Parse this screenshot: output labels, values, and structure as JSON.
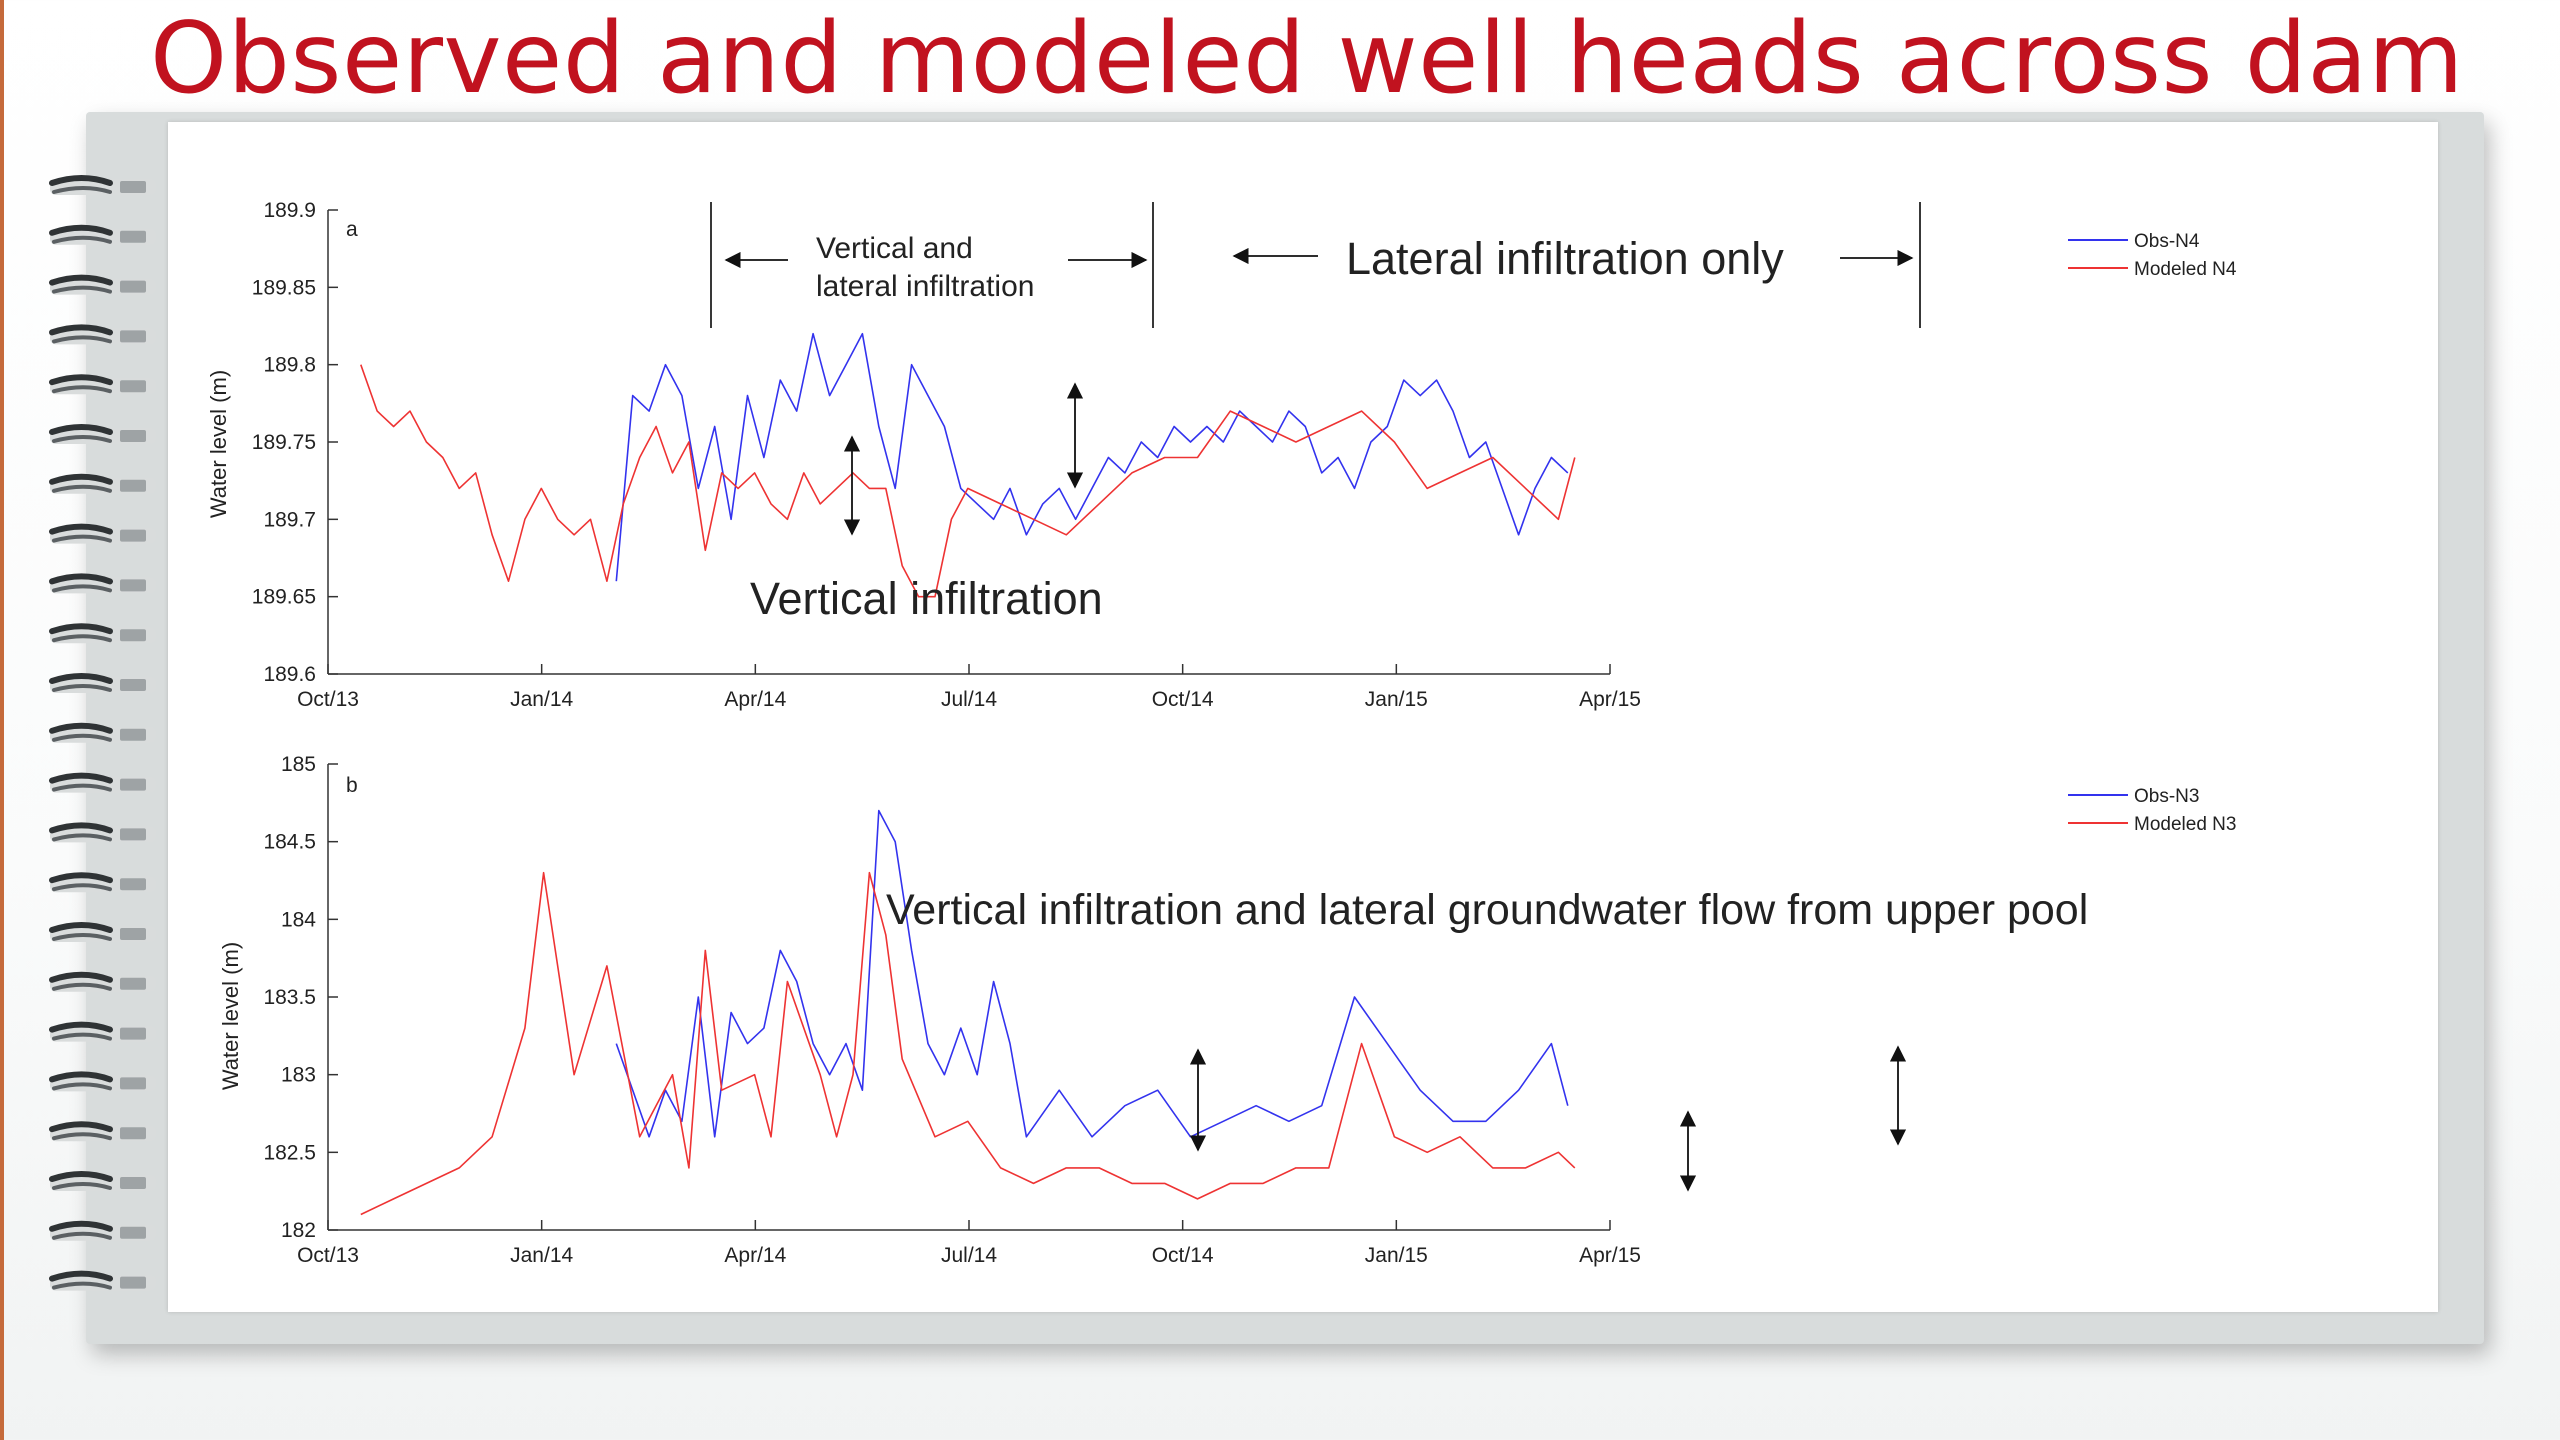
{
  "slide": {
    "title": "Observed and modeled well heads across dam"
  },
  "colors": {
    "title": "#c1121f",
    "observed_series": "#3333ee",
    "modeled_series": "#ee3333",
    "left_edge": "#c56a3b"
  },
  "icons": [
    "spiral-binding-icon",
    "double-arrow-icon"
  ],
  "chart_data": [
    {
      "type": "line",
      "panel_label": "a",
      "ylabel": "Water level (m)",
      "xlabel": "",
      "x_ticks": [
        "Oct/13",
        "Jan/14",
        "Apr/14",
        "Jul/14",
        "Oct/14",
        "Jan/15",
        "Apr/15"
      ],
      "y_ticks": [
        "189.6",
        "189.65",
        "189.7",
        "189.75",
        "189.8",
        "189.85",
        "189.9"
      ],
      "xlim": [
        "2013-10-01",
        "2015-04-01"
      ],
      "ylim": [
        189.6,
        189.9
      ],
      "grid": false,
      "legend": "top-right",
      "series": [
        {
          "name": "Obs-N4",
          "color": "#3333ee",
          "x": [
            "2014-02-01",
            "2014-02-08",
            "2014-02-15",
            "2014-02-22",
            "2014-03-01",
            "2014-03-08",
            "2014-03-15",
            "2014-03-22",
            "2014-03-29",
            "2014-04-05",
            "2014-04-12",
            "2014-04-19",
            "2014-04-26",
            "2014-05-03",
            "2014-05-10",
            "2014-05-17",
            "2014-05-24",
            "2014-05-31",
            "2014-06-07",
            "2014-06-14",
            "2014-06-21",
            "2014-06-28",
            "2014-07-05",
            "2014-07-12",
            "2014-07-19",
            "2014-07-26",
            "2014-08-02",
            "2014-08-09",
            "2014-08-16",
            "2014-08-23",
            "2014-08-30",
            "2014-09-06",
            "2014-09-13",
            "2014-09-20",
            "2014-09-27",
            "2014-10-04",
            "2014-10-11",
            "2014-10-18",
            "2014-10-25",
            "2014-11-01",
            "2014-11-08",
            "2014-11-15",
            "2014-11-22",
            "2014-11-29",
            "2014-12-06",
            "2014-12-13",
            "2014-12-20",
            "2014-12-27",
            "2015-01-03",
            "2015-01-10",
            "2015-01-17",
            "2015-01-24",
            "2015-01-31",
            "2015-02-07",
            "2015-02-14",
            "2015-02-21",
            "2015-02-28",
            "2015-03-07",
            "2015-03-14"
          ],
          "y": [
            189.66,
            189.78,
            189.77,
            189.8,
            189.78,
            189.72,
            189.76,
            189.7,
            189.78,
            189.74,
            189.79,
            189.77,
            189.82,
            189.78,
            189.8,
            189.82,
            189.76,
            189.72,
            189.8,
            189.78,
            189.76,
            189.72,
            189.71,
            189.7,
            189.72,
            189.69,
            189.71,
            189.72,
            189.7,
            189.72,
            189.74,
            189.73,
            189.75,
            189.74,
            189.76,
            189.75,
            189.76,
            189.75,
            189.77,
            189.76,
            189.75,
            189.77,
            189.76,
            189.73,
            189.74,
            189.72,
            189.75,
            189.76,
            189.79,
            189.78,
            189.79,
            189.77,
            189.74,
            189.75,
            189.72,
            189.69,
            189.72,
            189.74,
            189.73
          ]
        },
        {
          "name": "Modeled N4",
          "color": "#ee3333",
          "x": [
            "2013-10-15",
            "2013-10-22",
            "2013-10-29",
            "2013-11-05",
            "2013-11-12",
            "2013-11-19",
            "2013-11-26",
            "2013-12-03",
            "2013-12-10",
            "2013-12-17",
            "2013-12-24",
            "2013-12-31",
            "2014-01-07",
            "2014-01-14",
            "2014-01-21",
            "2014-01-28",
            "2014-02-04",
            "2014-02-11",
            "2014-02-18",
            "2014-02-25",
            "2014-03-04",
            "2014-03-11",
            "2014-03-18",
            "2014-03-25",
            "2014-04-01",
            "2014-04-08",
            "2014-04-15",
            "2014-04-22",
            "2014-04-29",
            "2014-05-06",
            "2014-05-13",
            "2014-05-20",
            "2014-05-27",
            "2014-06-03",
            "2014-06-10",
            "2014-06-17",
            "2014-06-24",
            "2014-07-01",
            "2014-07-15",
            "2014-07-29",
            "2014-08-12",
            "2014-08-26",
            "2014-09-09",
            "2014-09-23",
            "2014-10-07",
            "2014-10-21",
            "2014-11-04",
            "2014-11-18",
            "2014-12-02",
            "2014-12-16",
            "2014-12-30",
            "2015-01-13",
            "2015-01-27",
            "2015-02-10",
            "2015-02-24",
            "2015-03-10",
            "2015-03-17"
          ],
          "y": [
            189.8,
            189.77,
            189.76,
            189.77,
            189.75,
            189.74,
            189.72,
            189.73,
            189.69,
            189.66,
            189.7,
            189.72,
            189.7,
            189.69,
            189.7,
            189.66,
            189.71,
            189.74,
            189.76,
            189.73,
            189.75,
            189.68,
            189.73,
            189.72,
            189.73,
            189.71,
            189.7,
            189.73,
            189.71,
            189.72,
            189.73,
            189.72,
            189.72,
            189.67,
            189.65,
            189.65,
            189.7,
            189.72,
            189.71,
            189.7,
            189.69,
            189.71,
            189.73,
            189.74,
            189.74,
            189.77,
            189.76,
            189.75,
            189.76,
            189.77,
            189.75,
            189.72,
            189.73,
            189.74,
            189.72,
            189.7,
            189.74
          ]
        }
      ],
      "annotations": {
        "vertical_and_lateral": "Vertical and lateral infiltration",
        "lateral_only": "Lateral infiltration only",
        "vertical_only": "Vertical infiltration"
      }
    },
    {
      "type": "line",
      "panel_label": "b",
      "ylabel": "Water level (m)",
      "xlabel": "",
      "x_ticks": [
        "Oct/13",
        "Jan/14",
        "Apr/14",
        "Jul/14",
        "Oct/14",
        "Jan/15",
        "Apr/15"
      ],
      "y_ticks": [
        "182",
        "182.5",
        "183",
        "183.5",
        "184",
        "184.5",
        "185"
      ],
      "xlim": [
        "2013-10-01",
        "2015-04-01"
      ],
      "ylim": [
        182,
        185
      ],
      "grid": false,
      "legend": "top-right",
      "series": [
        {
          "name": "Obs-N3",
          "color": "#3333ee",
          "x": [
            "2014-02-01",
            "2014-02-15",
            "2014-02-22",
            "2014-03-01",
            "2014-03-08",
            "2014-03-15",
            "2014-03-22",
            "2014-03-29",
            "2014-04-05",
            "2014-04-12",
            "2014-04-19",
            "2014-04-26",
            "2014-05-03",
            "2014-05-10",
            "2014-05-17",
            "2014-05-24",
            "2014-05-31",
            "2014-06-07",
            "2014-06-14",
            "2014-06-21",
            "2014-06-28",
            "2014-07-05",
            "2014-07-12",
            "2014-07-19",
            "2014-07-26",
            "2014-08-09",
            "2014-08-23",
            "2014-09-06",
            "2014-09-20",
            "2014-10-04",
            "2014-10-18",
            "2014-11-01",
            "2014-11-15",
            "2014-11-29",
            "2014-12-13",
            "2014-12-27",
            "2015-01-10",
            "2015-01-24",
            "2015-02-07",
            "2015-02-21",
            "2015-03-07",
            "2015-03-14"
          ],
          "y": [
            183.2,
            182.6,
            182.9,
            182.7,
            183.5,
            182.6,
            183.4,
            183.2,
            183.3,
            183.8,
            183.6,
            183.2,
            183.0,
            183.2,
            182.9,
            184.7,
            184.5,
            183.8,
            183.2,
            183.0,
            183.3,
            183.0,
            183.6,
            183.2,
            182.6,
            182.9,
            182.6,
            182.8,
            182.9,
            182.6,
            182.7,
            182.8,
            182.7,
            182.8,
            183.5,
            183.2,
            182.9,
            182.7,
            182.7,
            182.9,
            183.2,
            182.8
          ]
        },
        {
          "name": "Modeled N3",
          "color": "#ee3333",
          "x": [
            "2013-10-15",
            "2013-10-29",
            "2013-11-12",
            "2013-11-26",
            "2013-12-03",
            "2013-12-10",
            "2013-12-24",
            "2014-01-01",
            "2014-01-14",
            "2014-01-28",
            "2014-02-11",
            "2014-02-25",
            "2014-03-04",
            "2014-03-11",
            "2014-03-18",
            "2014-04-01",
            "2014-04-08",
            "2014-04-15",
            "2014-04-29",
            "2014-05-06",
            "2014-05-13",
            "2014-05-20",
            "2014-05-27",
            "2014-06-03",
            "2014-06-17",
            "2014-07-01",
            "2014-07-15",
            "2014-07-29",
            "2014-08-12",
            "2014-08-26",
            "2014-09-09",
            "2014-09-23",
            "2014-10-07",
            "2014-10-21",
            "2014-11-04",
            "2014-11-18",
            "2014-12-02",
            "2014-12-16",
            "2014-12-30",
            "2015-01-13",
            "2015-01-27",
            "2015-02-10",
            "2015-02-24",
            "2015-03-10",
            "2015-03-17"
          ],
          "y": [
            182.1,
            182.2,
            182.3,
            182.4,
            182.5,
            182.6,
            183.3,
            184.3,
            183.0,
            183.7,
            182.6,
            183.0,
            182.4,
            183.8,
            182.9,
            183.0,
            182.6,
            183.6,
            183.0,
            182.6,
            183.0,
            184.3,
            183.9,
            183.1,
            182.6,
            182.7,
            182.4,
            182.3,
            182.4,
            182.4,
            182.3,
            182.3,
            182.2,
            182.3,
            182.3,
            182.4,
            182.4,
            183.2,
            182.6,
            182.5,
            182.6,
            182.4,
            182.4,
            182.5,
            182.4
          ]
        }
      ],
      "annotations": {
        "main": "Vertical infiltration and lateral groundwater flow from upper pool"
      }
    }
  ]
}
